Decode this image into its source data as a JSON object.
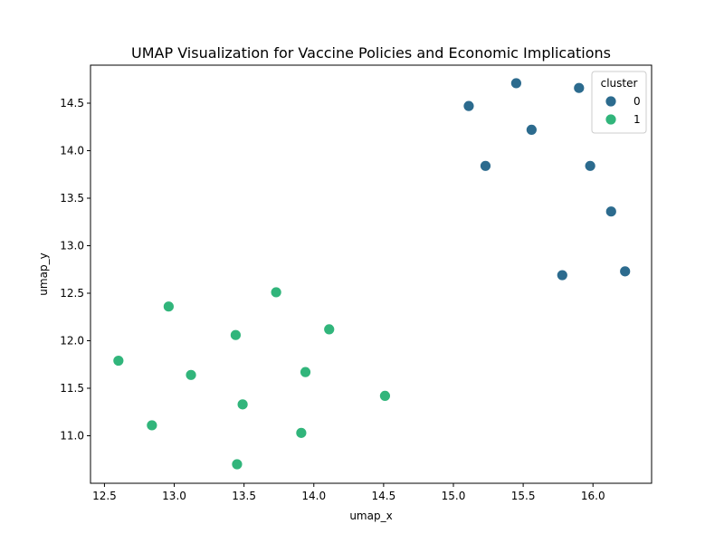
{
  "chart_data": {
    "type": "scatter",
    "title": "UMAP Visualization for Vaccine Policies and Economic Implications",
    "xlabel": "umap_x",
    "ylabel": "umap_y",
    "xlim": [
      12.4,
      16.42
    ],
    "ylim": [
      10.5,
      14.9
    ],
    "xticks": [
      "12.5",
      "13.0",
      "13.5",
      "14.0",
      "14.5",
      "15.0",
      "15.5",
      "16.0"
    ],
    "yticks": [
      "11.0",
      "11.5",
      "12.0",
      "12.5",
      "13.0",
      "13.5",
      "14.0",
      "14.5"
    ],
    "grid": false,
    "legend": {
      "title": "cluster",
      "position": "top-right"
    },
    "series": [
      {
        "name": "0",
        "color": "#2c6b8e",
        "points": [
          [
            15.45,
            14.71
          ],
          [
            15.9,
            14.66
          ],
          [
            15.11,
            14.47
          ],
          [
            15.56,
            14.22
          ],
          [
            15.23,
            13.84
          ],
          [
            15.98,
            13.84
          ],
          [
            16.13,
            13.36
          ],
          [
            15.78,
            12.69
          ],
          [
            16.23,
            12.73
          ]
        ]
      },
      {
        "name": "1",
        "color": "#31b57b",
        "points": [
          [
            13.73,
            12.51
          ],
          [
            12.96,
            12.36
          ],
          [
            14.11,
            12.12
          ],
          [
            13.44,
            12.06
          ],
          [
            12.6,
            11.79
          ],
          [
            13.12,
            11.64
          ],
          [
            13.94,
            11.67
          ],
          [
            14.51,
            11.42
          ],
          [
            13.49,
            11.33
          ],
          [
            12.84,
            11.11
          ],
          [
            13.91,
            11.03
          ],
          [
            13.45,
            10.7
          ]
        ]
      }
    ]
  }
}
